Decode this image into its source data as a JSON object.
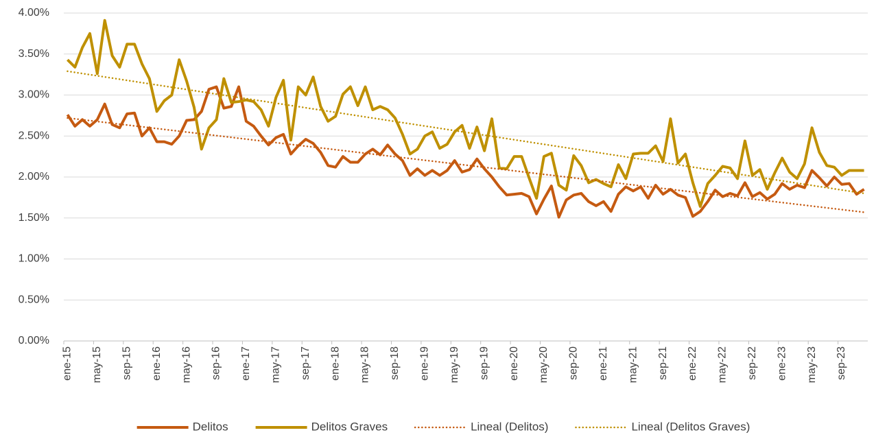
{
  "chart_data": {
    "type": "line",
    "categories": [
      "ene-15",
      null,
      null,
      null,
      "may-15",
      null,
      null,
      null,
      "sep-15",
      null,
      null,
      null,
      "ene-16",
      null,
      null,
      null,
      "may-16",
      null,
      null,
      null,
      "sep-16",
      null,
      null,
      null,
      "ene-17",
      null,
      null,
      null,
      "may-17",
      null,
      null,
      null,
      "sep-17",
      null,
      null,
      null,
      "ene-18",
      null,
      null,
      null,
      "may-18",
      null,
      null,
      null,
      "sep-18",
      null,
      null,
      null,
      "ene-19",
      null,
      null,
      null,
      "may-19",
      null,
      null,
      null,
      "sep-19",
      null,
      null,
      null,
      "ene-20",
      null,
      null,
      null,
      "may-20",
      null,
      null,
      null,
      "sep-20",
      null,
      null,
      null,
      "ene-21",
      null,
      null,
      null,
      "may-21",
      null,
      null,
      null,
      "sep-21",
      null,
      null,
      null,
      "ene-22",
      null,
      null,
      null,
      "may-22",
      null,
      null,
      null,
      "sep-22",
      null,
      null,
      null,
      "ene-23",
      null,
      null,
      null,
      "may-23",
      null,
      null,
      null,
      "sep-23",
      null,
      null,
      null
    ],
    "series": [
      {
        "name": "Delitos",
        "color": "#c55a11",
        "values": [
          2.76,
          2.62,
          2.7,
          2.62,
          2.7,
          2.89,
          2.64,
          2.6,
          2.77,
          2.78,
          2.5,
          2.6,
          2.43,
          2.43,
          2.4,
          2.5,
          2.69,
          2.7,
          2.8,
          3.07,
          3.1,
          2.84,
          2.86,
          3.1,
          2.68,
          2.62,
          2.5,
          2.39,
          2.48,
          2.52,
          2.28,
          2.38,
          2.46,
          2.41,
          2.3,
          2.14,
          2.12,
          2.25,
          2.18,
          2.18,
          2.28,
          2.34,
          2.27,
          2.39,
          2.28,
          2.2,
          2.02,
          2.1,
          2.02,
          2.08,
          2.02,
          2.08,
          2.2,
          2.06,
          2.09,
          2.22,
          2.1,
          2.0,
          1.88,
          1.78,
          1.79,
          1.8,
          1.76,
          1.55,
          1.73,
          1.89,
          1.51,
          1.72,
          1.78,
          1.8,
          1.7,
          1.65,
          1.7,
          1.58,
          1.79,
          1.88,
          1.83,
          1.88,
          1.74,
          1.9,
          1.79,
          1.85,
          1.78,
          1.75,
          1.52,
          1.58,
          1.7,
          1.84,
          1.76,
          1.8,
          1.77,
          1.93,
          1.76,
          1.81,
          1.73,
          1.79,
          1.92,
          1.85,
          1.9,
          1.87,
          2.08,
          1.99,
          1.89,
          2.0,
          1.91,
          1.92,
          1.79,
          1.85
        ]
      },
      {
        "name": "Delitos Graves",
        "color": "#bf9000",
        "values": [
          3.43,
          3.34,
          3.58,
          3.75,
          3.26,
          3.91,
          3.48,
          3.34,
          3.62,
          3.62,
          3.38,
          3.2,
          2.8,
          2.93,
          3.0,
          3.43,
          3.17,
          2.85,
          2.34,
          2.6,
          2.7,
          3.2,
          2.91,
          2.92,
          2.94,
          2.92,
          2.82,
          2.62,
          2.97,
          3.18,
          2.45,
          3.1,
          3.0,
          3.22,
          2.86,
          2.68,
          2.74,
          3.01,
          3.1,
          2.87,
          3.1,
          2.82,
          2.86,
          2.82,
          2.72,
          2.52,
          2.28,
          2.34,
          2.5,
          2.55,
          2.35,
          2.4,
          2.55,
          2.63,
          2.35,
          2.61,
          2.32,
          2.71,
          2.11,
          2.1,
          2.25,
          2.25,
          1.99,
          1.74,
          2.25,
          2.29,
          1.9,
          1.84,
          2.26,
          2.14,
          1.93,
          1.97,
          1.92,
          1.88,
          2.15,
          1.98,
          2.28,
          2.29,
          2.29,
          2.38,
          2.19,
          2.71,
          2.17,
          2.28,
          1.93,
          1.64,
          1.92,
          2.02,
          2.13,
          2.11,
          1.98,
          2.44,
          2.02,
          2.09,
          1.85,
          2.05,
          2.23,
          2.06,
          1.98,
          2.16,
          2.6,
          2.3,
          2.14,
          2.12,
          2.02,
          2.08,
          2.08,
          2.08
        ]
      }
    ],
    "trendlines": [
      {
        "name": "Lineal (Delitos)",
        "color": "#c55a11",
        "values": [
          2.72,
          1.57
        ]
      },
      {
        "name": "Lineal (Delitos Graves)",
        "color": "#bf9000",
        "values": [
          3.29,
          1.8
        ]
      }
    ],
    "ylim": [
      0,
      4
    ],
    "yticks": [
      {
        "value": 0,
        "label": "0.00%"
      },
      {
        "value": 0.5,
        "label": "0.50%"
      },
      {
        "value": 1,
        "label": "1.00%"
      },
      {
        "value": 1.5,
        "label": "1.50%"
      },
      {
        "value": 2,
        "label": "2.00%"
      },
      {
        "value": 2.5,
        "label": "2.50%"
      },
      {
        "value": 3,
        "label": "3.00%"
      },
      {
        "value": 3.5,
        "label": "3.50%"
      },
      {
        "value": 4,
        "label": "4.00%"
      }
    ],
    "grid": true,
    "legend": "bottom"
  }
}
